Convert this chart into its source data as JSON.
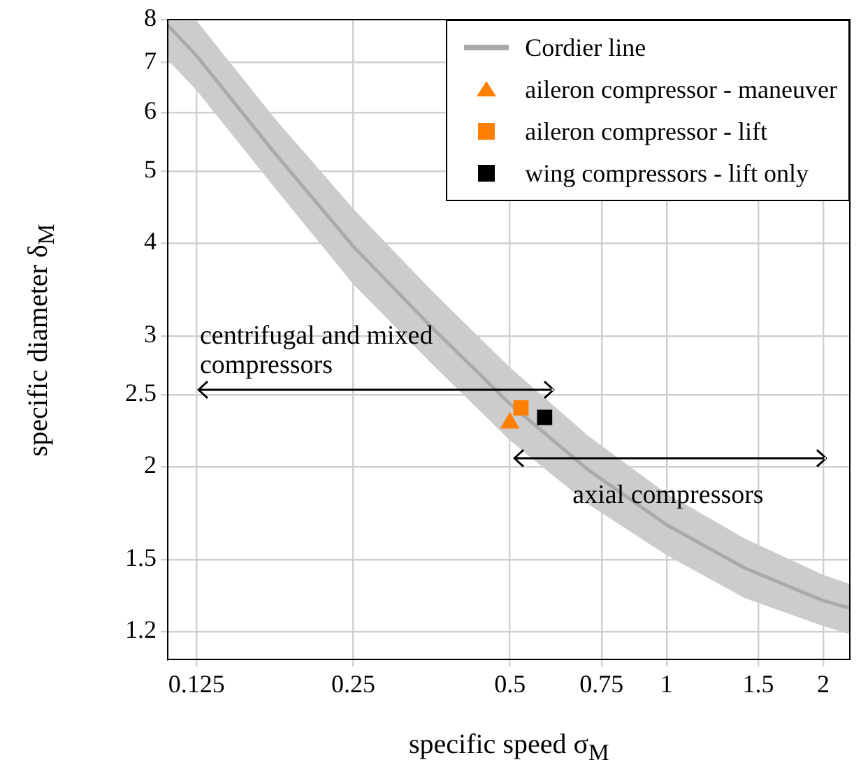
{
  "chart_data": {
    "type": "line",
    "xlabel": "specific speed σ$_{M}$",
    "ylabel": "specific diameter δ$_{M}$",
    "log": "xy",
    "grid": true,
    "legend": "top right",
    "xlim": [
      0.11,
      2.25
    ],
    "xticks": [
      0.125,
      0.25,
      0.5,
      0.75,
      1,
      1.5,
      2
    ],
    "ylim": [
      1.1,
      8
    ],
    "yticks": [
      1.2,
      1.5,
      2,
      2.5,
      3,
      4,
      5,
      6,
      7,
      8
    ],
    "series": [
      {
        "name": "Cordier line",
        "color": "#aaaaaa",
        "marker": "none",
        "x": [
          0.11,
          0.125,
          0.177,
          0.25,
          0.354,
          0.5,
          0.707,
          1,
          1.414,
          2,
          2.25
        ],
        "values": [
          7.86,
          7.15,
          5.28,
          3.96,
          3.08,
          2.43,
          1.98,
          1.67,
          1.46,
          1.32,
          1.29
        ],
        "upper": [
          8,
          7.97,
          5.88,
          4.45,
          3.45,
          2.72,
          2.2,
          1.84,
          1.6,
          1.43,
          1.39
        ],
        "lower": [
          7.06,
          6.42,
          4.74,
          3.52,
          2.75,
          2.17,
          1.78,
          1.52,
          1.33,
          1.22,
          1.19
        ]
      },
      {
        "name": "aileron compressor - maneuver",
        "type": "scatter",
        "color": "#ff8000",
        "marker": "triangle",
        "x": [
          0.5
        ],
        "values": [
          2.29
        ]
      },
      {
        "name": "aileron compressor - lift",
        "type": "scatter",
        "color": "#ff8000",
        "marker": "square",
        "x": [
          0.525
        ],
        "values": [
          2.4
        ]
      },
      {
        "name": "wing compressors - lift only",
        "type": "scatter",
        "color": "#000000",
        "marker": "square",
        "x": [
          0.583
        ],
        "values": [
          2.33
        ]
      }
    ],
    "annotations": [
      "centrifugal and mixed compressors",
      "axial compressors"
    ]
  }
}
